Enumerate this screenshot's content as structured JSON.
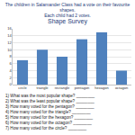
{
  "intro": [
    "The children in Salamander Class had a vote on their favourite shapes.",
    "Each child had 2 votes."
  ],
  "chart_data": {
    "type": "bar",
    "title": "Shape Survey",
    "categories": [
      "circle",
      "triangle",
      "rectangle",
      "pentagon",
      "hexagon",
      "octagon"
    ],
    "values": [
      7,
      10,
      8,
      13,
      15,
      4
    ],
    "color": "#4f81bd",
    "ylim": [
      0,
      16
    ],
    "yticks": [
      0,
      2,
      4,
      6,
      8,
      10,
      12,
      14,
      16
    ],
    "grid": true
  },
  "questions": [
    "1) What was the most popular shape? ________",
    "2) What was the least popular shape? ________",
    "3) How many voted for the pentagon? ________",
    "4) How many voted for the triangle? ________",
    "5) How many voted for the hexagon? ________",
    "6) How many voted for the octagon? ________",
    "7) How many voted for the circle? ________"
  ]
}
